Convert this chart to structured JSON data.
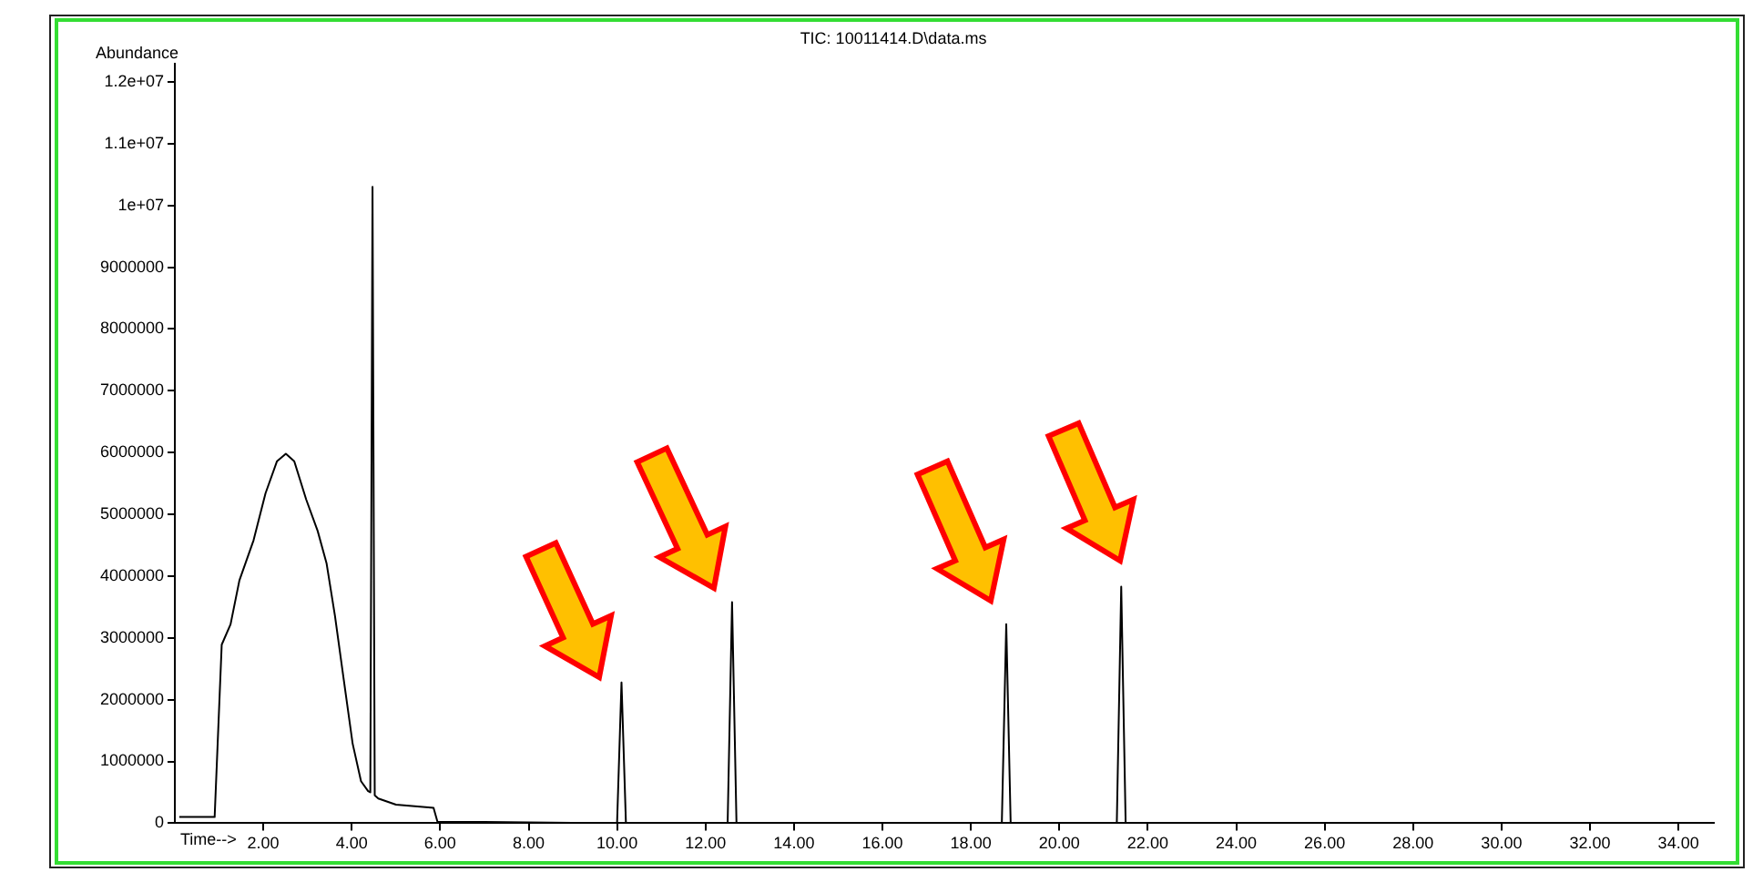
{
  "chart_data": {
    "type": "line",
    "title": "TIC: 10011414.D\\data.ms",
    "xlabel": "Time-->",
    "ylabel": "Abundance",
    "x": [
      0.1,
      0.9,
      1.06,
      1.26,
      1.46,
      1.78,
      2.05,
      2.31,
      2.51,
      2.7,
      2.97,
      3.23,
      3.43,
      3.62,
      3.82,
      4.02,
      4.21,
      4.37,
      4.42,
      4.47,
      4.52,
      4.6,
      5.0,
      5.85,
      5.94,
      7.0,
      10.0,
      10.1,
      10.2,
      12.5,
      12.6,
      12.7,
      18.7,
      18.8,
      18.9,
      21.3,
      21.4,
      21.5,
      34.7
    ],
    "series": [
      {
        "color": "#000000",
        "values": [
          100000,
          100000,
          2890000,
          3220000,
          3930000,
          4580000,
          5340000,
          5860000,
          5980000,
          5860000,
          5240000,
          4730000,
          4210000,
          3360000,
          2320000,
          1290000,
          680000,
          520000,
          500000,
          10300000,
          450000,
          400000,
          300000,
          250000,
          20000,
          20000,
          0,
          2280000,
          0,
          0,
          3580000,
          0,
          0,
          3220000,
          0,
          0,
          3830000,
          0,
          0
        ]
      }
    ],
    "xlim": [
      0,
      34.8
    ],
    "xticks": [
      {
        "value": 2,
        "label": "2.00"
      },
      {
        "value": 4,
        "label": "4.00"
      },
      {
        "value": 6,
        "label": "6.00"
      },
      {
        "value": 8,
        "label": "8.00"
      },
      {
        "value": 10,
        "label": "10.00"
      },
      {
        "value": 12,
        "label": "12.00"
      },
      {
        "value": 14,
        "label": "14.00"
      },
      {
        "value": 16,
        "label": "16.00"
      },
      {
        "value": 18,
        "label": "18.00"
      },
      {
        "value": 20,
        "label": "20.00"
      },
      {
        "value": 22,
        "label": "22.00"
      },
      {
        "value": 24,
        "label": "24.00"
      },
      {
        "value": 26,
        "label": "26.00"
      },
      {
        "value": 28,
        "label": "28.00"
      },
      {
        "value": 30,
        "label": "30.00"
      },
      {
        "value": 32,
        "label": "32.00"
      },
      {
        "value": 34,
        "label": "34.00"
      }
    ],
    "ylim": [
      0,
      12300000
    ],
    "yticks": [
      0,
      1000000,
      2000000,
      3000000,
      4000000,
      5000000,
      6000000,
      7000000,
      8000000,
      9000000,
      {
        "value": 10000000,
        "label": "1e+07"
      },
      {
        "value": 11000000,
        "label": "1.1e+07"
      },
      {
        "value": 12000000,
        "label": "1.2e+07"
      }
    ],
    "grid": false,
    "legend": false,
    "marker": "none",
    "line_style": "solid"
  }
}
